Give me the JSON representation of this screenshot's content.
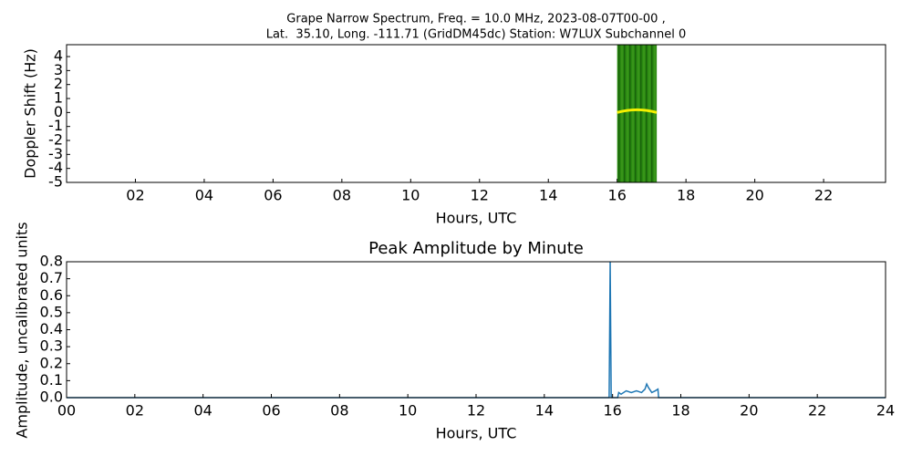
{
  "chart_data": [
    {
      "type": "spectrogram",
      "title": [
        "Grape Narrow Spectrum, Freq. = 10.0 MHz, 2023-08-07T00-00 ,",
        "Lat.  35.10, Long. -111.71 (GridDM45dc) Station: W7LUX Subchannel 0"
      ],
      "x_label": "Hours, UTC",
      "y_label": "Doppler Shift (Hz)",
      "span": [
        16.0,
        17.15
      ],
      "color": "#2a8a12",
      "xlim": [
        0,
        23.8
      ],
      "xticks": [
        {
          "value": 2,
          "label": "02"
        },
        {
          "value": 4,
          "label": "04"
        },
        {
          "value": 6,
          "label": "06"
        },
        {
          "value": 8,
          "label": "08"
        },
        10,
        12,
        14,
        16,
        18,
        20,
        22
      ],
      "ylim": [
        -5,
        4.85
      ],
      "yticks": [
        -5,
        -4,
        -3,
        -2,
        -1,
        0,
        1,
        2,
        3,
        4
      ]
    },
    {
      "type": "line",
      "title": "Peak Amplitude by Minute",
      "x_label": "Hours, UTC",
      "y_label": "Amplitude, uncalibrated units",
      "x": [
        0,
        15.9,
        15.93,
        15.96,
        16.15,
        16.18,
        16.25,
        16.4,
        16.55,
        16.7,
        16.85,
        16.95,
        17.0,
        17.05,
        17.15,
        17.25,
        17.33,
        17.35,
        24
      ],
      "values": [
        0,
        0,
        0.8,
        0,
        0,
        0.03,
        0.02,
        0.04,
        0.03,
        0.04,
        0.03,
        0.05,
        0.08,
        0.06,
        0.03,
        0.04,
        0.05,
        0,
        0
      ],
      "color": "#1f77b4",
      "xlim": [
        0,
        24
      ],
      "xticks": [
        {
          "value": 0,
          "label": "00"
        },
        {
          "value": 2,
          "label": "02"
        },
        {
          "value": 4,
          "label": "04"
        },
        {
          "value": 6,
          "label": "06"
        },
        {
          "value": 8,
          "label": "08"
        },
        10,
        12,
        14,
        16,
        18,
        20,
        22,
        24
      ],
      "ylim": [
        0,
        0.8
      ],
      "yticks": [
        {
          "value": 0,
          "label": "0.0"
        },
        0.1,
        0.2,
        0.3,
        0.4,
        0.5,
        0.6,
        0.7,
        0.8
      ]
    }
  ]
}
